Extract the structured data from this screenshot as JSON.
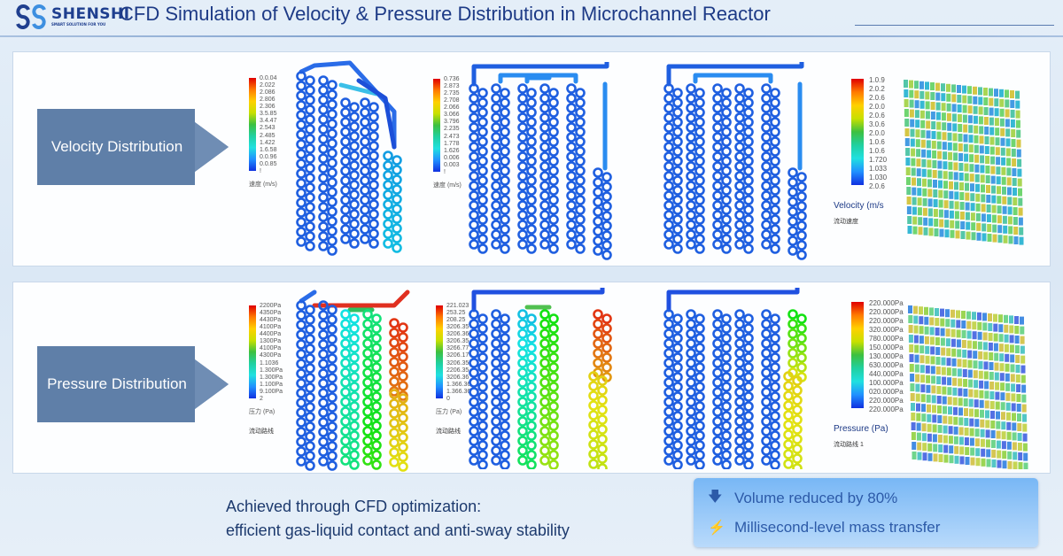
{
  "header": {
    "brand": "SHENSHI",
    "tagline": "SMART SOLUTION FOR YOU",
    "title": "CFD Simulation of Velocity & Pressure Distribution in Microchannel Reactor"
  },
  "velocity_row": {
    "label": "Velocity Distribution",
    "legend1": {
      "labels": [
        "0.0.04",
        "2.022",
        "2.086",
        "2.806",
        "2.306",
        "3.5.85",
        "3.4.47",
        "2.543",
        "2.485",
        "1.422",
        "1.6.58",
        "0.0.96",
        "0.0.85",
        "!"
      ],
      "unit": "速度 (m/s)"
    },
    "legend2": {
      "labels": [
        "0.736",
        "2.873",
        "2.735",
        "2.708",
        "2.066",
        "3.066",
        "3.796",
        "2.235",
        "2.473",
        "1.778",
        "1.626",
        "0.006",
        "0.003",
        "!"
      ],
      "unit": "速度 (m/s)"
    },
    "legend3": {
      "labels": [
        "1.0.9",
        "2.0.2",
        "2.0.6",
        "2.0.0",
        "2.0.6",
        "3.0.6",
        "2.0.0",
        "1.0.6",
        "1.0.6",
        "1.720",
        "1.033",
        "1.030",
        "2.0.6"
      ],
      "unit": "Velocity (m/s",
      "sub": "流动速度"
    }
  },
  "pressure_row": {
    "label": "Pressure Distribution",
    "legend1": {
      "labels": [
        "2200Pa",
        "4350Pa",
        "4430Pa",
        "4100Pa",
        "4400Pa",
        "1300Pa",
        "4100Pa",
        "4300Pa",
        "1.1036",
        "1.300Pa",
        "1.300Pa",
        "1.100Pa",
        "9.100Pa",
        "2"
      ],
      "unit": "压力 (Pa)",
      "sub": "流动路线"
    },
    "legend2": {
      "labels": [
        "221.023",
        "253.25",
        "208.25",
        "3206.35",
        "3206.36",
        "3206.35",
        "3266.77",
        "3206.17",
        "3206.35",
        "2206.35",
        "3206.36",
        "1.366.36",
        "1.366.36",
        "0"
      ],
      "unit": "压力 (Pa)",
      "sub": "流动路线"
    },
    "legend3": {
      "labels": [
        "220.000Pa",
        "220.000Pa",
        "220.000Pa",
        "320.000Pa",
        "780.000Pa",
        "150.000Pa",
        "130.000Pa",
        "630.000Pa",
        "440.000Pa",
        "100.000Pa",
        "020.000Pa",
        "220.000Pa",
        "220.000Pa"
      ],
      "unit": "Pressure (Pa)",
      "sub": "流动路线 1"
    }
  },
  "bottom": {
    "line1": "Achieved through CFD optimization:",
    "line2": "efficient gas-liquid contact and anti-sway stability",
    "features": [
      {
        "icon": "arrow-down-icon",
        "text": "Volume reduced by 80%"
      },
      {
        "icon": "lightning-icon",
        "text": "Millisecond-level mass transfer"
      }
    ]
  },
  "colors": {
    "brand": "#1f3f8f",
    "arrow_box": "#5f7fa8",
    "feature_bg": "#8ec5f8",
    "feature_text": "#2c5aa8"
  }
}
